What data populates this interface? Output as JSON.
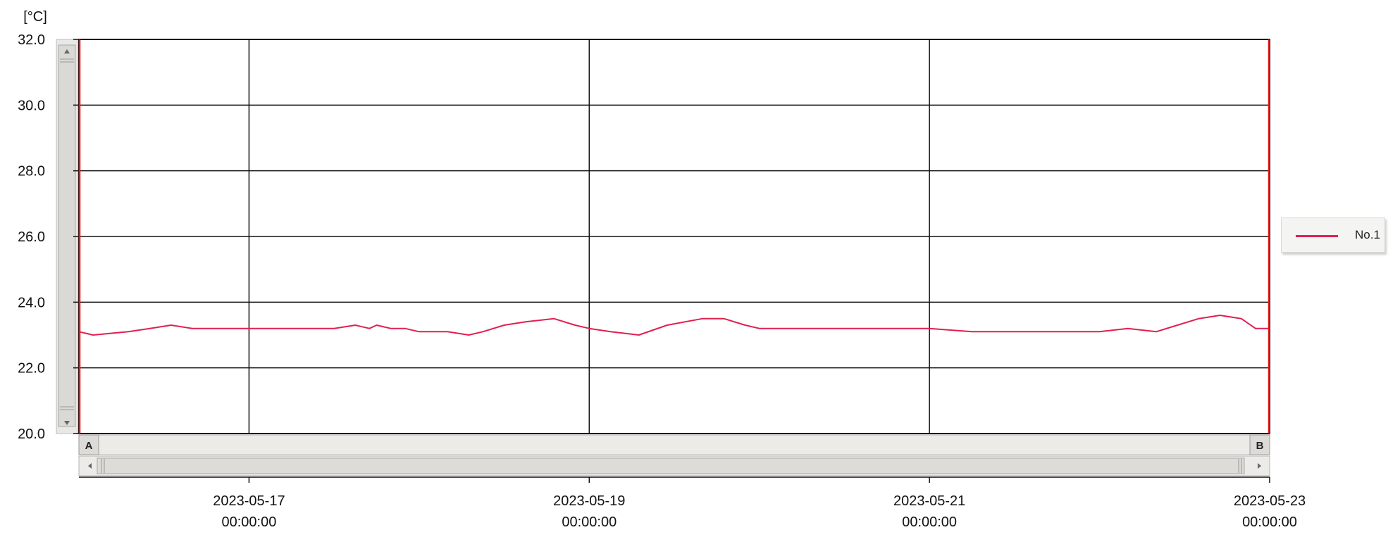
{
  "chart_data": {
    "type": "line",
    "ylabel": "[°C]",
    "ylim": [
      20.0,
      32.0
    ],
    "y_ticks": [
      "32.0",
      "30.0",
      "28.0",
      "26.0",
      "24.0",
      "22.0",
      "20.0"
    ],
    "x_ticks": [
      {
        "date": "2023-05-17",
        "time": "00:00:00"
      },
      {
        "date": "2023-05-19",
        "time": "00:00:00"
      },
      {
        "date": "2023-05-21",
        "time": "00:00:00"
      },
      {
        "date": "2023-05-23",
        "time": "00:00:00"
      }
    ],
    "xlim": [
      "2023-05-16 00:00",
      "2023-05-23 00:00"
    ],
    "grid": true,
    "legend_position": "right",
    "cursor_labels": {
      "a": "A",
      "b": "B"
    },
    "colors": {
      "series": "#e0204f",
      "cursor": "#e81818",
      "grid": "#111111"
    },
    "series": [
      {
        "name": "No.1",
        "x": [
          "2023-05-16 00:00",
          "2023-05-16 02:00",
          "2023-05-16 07:00",
          "2023-05-16 10:00",
          "2023-05-16 13:00",
          "2023-05-16 16:00",
          "2023-05-16 22:00",
          "2023-05-17 00:00",
          "2023-05-17 06:00",
          "2023-05-17 12:00",
          "2023-05-17 15:00",
          "2023-05-17 17:00",
          "2023-05-17 18:00",
          "2023-05-17 20:00",
          "2023-05-17 22:00",
          "2023-05-18 00:00",
          "2023-05-18 04:00",
          "2023-05-18 07:00",
          "2023-05-18 09:00",
          "2023-05-18 12:00",
          "2023-05-18 15:00",
          "2023-05-18 19:00",
          "2023-05-18 22:00",
          "2023-05-19 00:00",
          "2023-05-19 03:00",
          "2023-05-19 07:00",
          "2023-05-19 11:00",
          "2023-05-19 16:00",
          "2023-05-19 19:00",
          "2023-05-19 22:00",
          "2023-05-20 00:00",
          "2023-05-20 06:00",
          "2023-05-20 12:00",
          "2023-05-20 18:00",
          "2023-05-21 00:00",
          "2023-05-21 06:00",
          "2023-05-21 09:00",
          "2023-05-21 14:00",
          "2023-05-21 20:00",
          "2023-05-22 00:00",
          "2023-05-22 04:00",
          "2023-05-22 08:00",
          "2023-05-22 11:00",
          "2023-05-22 14:00",
          "2023-05-22 17:00",
          "2023-05-22 20:00",
          "2023-05-22 22:00",
          "2023-05-23 00:00"
        ],
        "y": [
          23.1,
          23.0,
          23.1,
          23.2,
          23.3,
          23.2,
          23.2,
          23.2,
          23.2,
          23.2,
          23.3,
          23.2,
          23.3,
          23.2,
          23.2,
          23.1,
          23.1,
          23.0,
          23.1,
          23.3,
          23.4,
          23.5,
          23.3,
          23.2,
          23.1,
          23.0,
          23.3,
          23.5,
          23.5,
          23.3,
          23.2,
          23.2,
          23.2,
          23.2,
          23.2,
          23.1,
          23.1,
          23.1,
          23.1,
          23.1,
          23.2,
          23.1,
          23.3,
          23.5,
          23.6,
          23.5,
          23.2,
          23.2
        ]
      }
    ]
  }
}
